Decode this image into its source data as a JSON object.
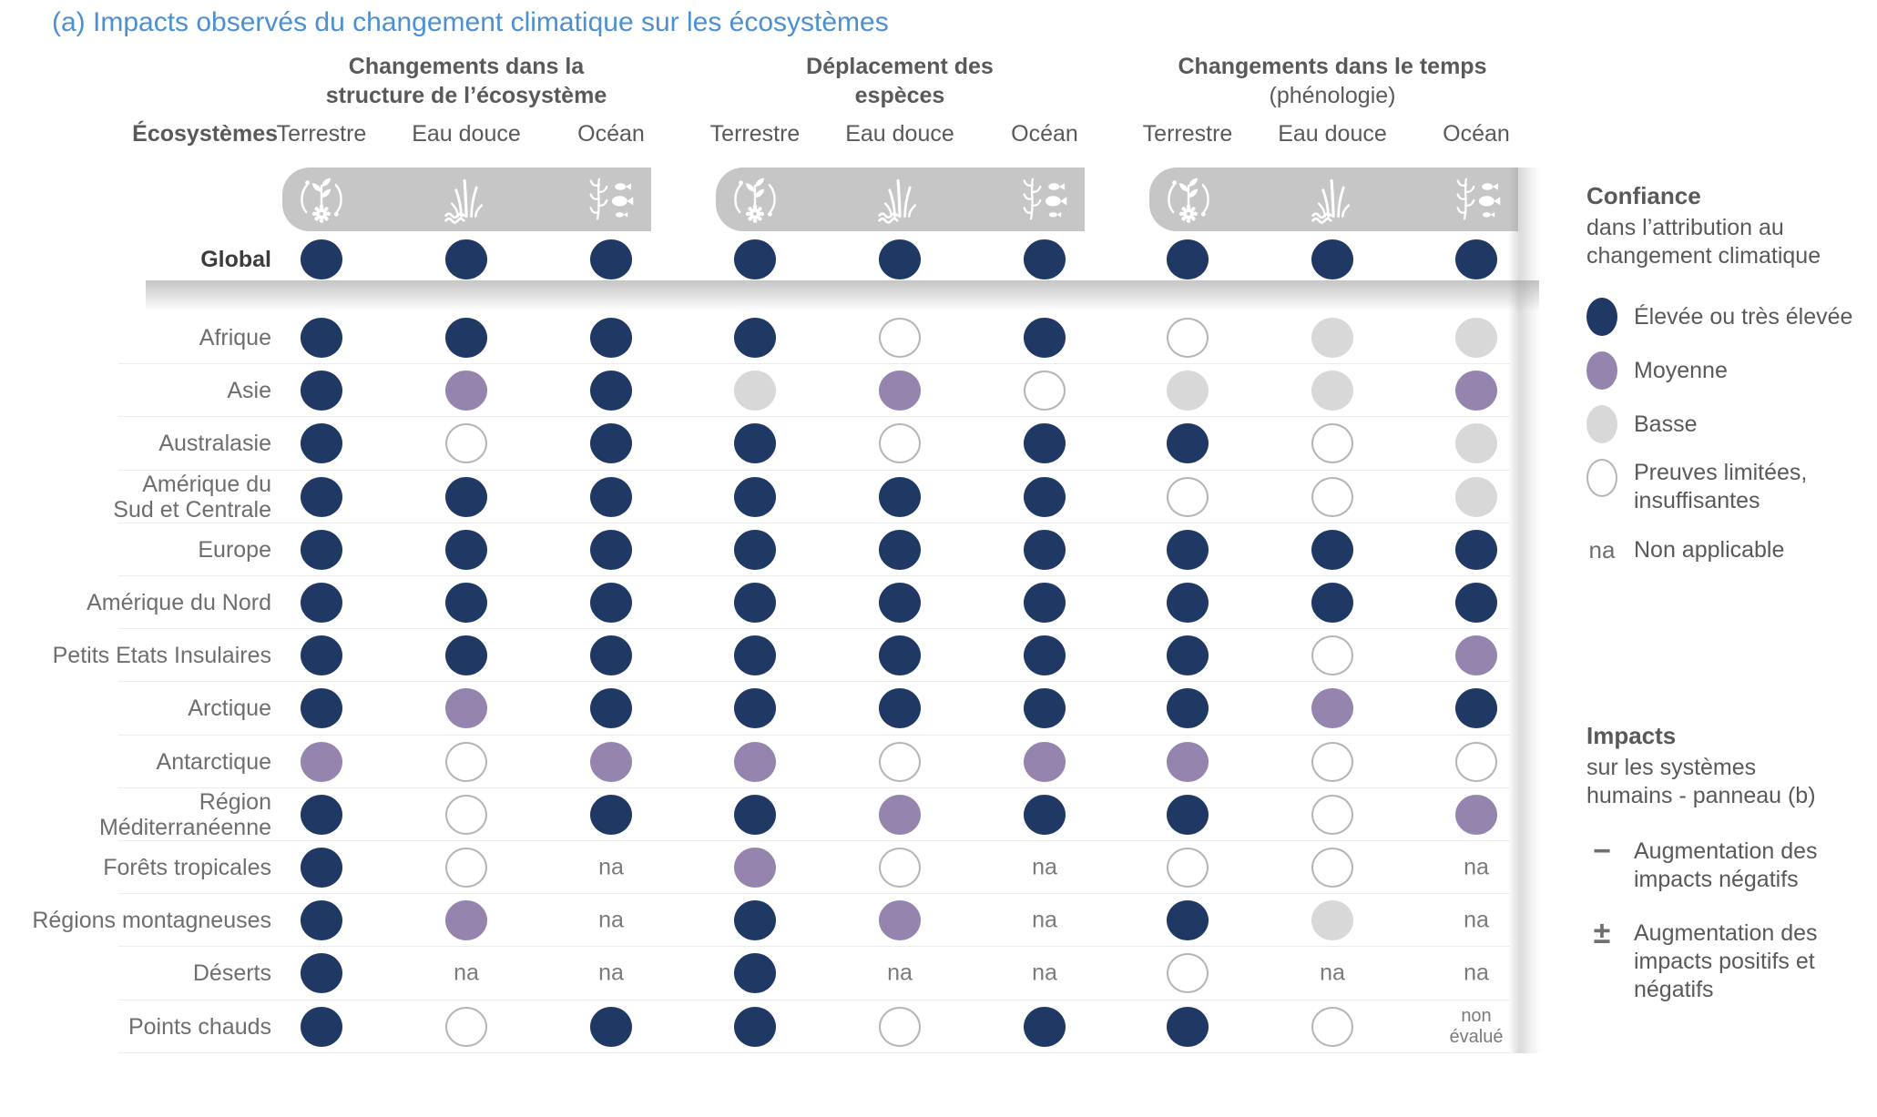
{
  "title": "(a) Impacts observés du changement climatique sur les écosystèmes",
  "colors": {
    "title_blue": "#4a90d2",
    "confidence_high": "#1f3864",
    "confidence_medium": "#9585ae",
    "confidence_low": "#d8d8d8",
    "limited_outline": "#b5b5b5",
    "icon_band_gray": "#c6c6c6",
    "header_gray": "#595959"
  },
  "matrix": {
    "row_header_label": "Écosystèmes",
    "na_label": "na",
    "not_evaluated_label": "non\névalué",
    "groups": [
      {
        "title_lines": [
          "Changements dans la",
          "structure de l’écosystème"
        ],
        "subtitle": "",
        "columns": [
          "Terrestre",
          "Eau douce",
          "Océan"
        ]
      },
      {
        "title_lines": [
          "Déplacement des",
          "espèces"
        ],
        "subtitle": "",
        "columns": [
          "Terrestre",
          "Eau douce",
          "Océan"
        ]
      },
      {
        "title_lines": [
          "Changements dans le temps",
          ""
        ],
        "subtitle": "(phénologie)",
        "columns": [
          "Terrestre",
          "Eau douce",
          "Océan"
        ]
      }
    ],
    "icons": [
      "terrestrial-ecosystem-icon",
      "freshwater-ecosystem-icon",
      "ocean-ecosystem-icon"
    ]
  },
  "chart_data": {
    "type": "heatmap",
    "title": "(a) Impacts observés du changement climatique sur les écosystèmes",
    "column_groups": [
      "Changements dans la structure de l’écosystème",
      "Déplacement des espèces",
      "Changements dans le temps (phénologie)"
    ],
    "columns": [
      "Terrestre",
      "Eau douce",
      "Océan",
      "Terrestre",
      "Eau douce",
      "Océan",
      "Terrestre",
      "Eau douce",
      "Océan"
    ],
    "value_labels": {
      "high": "Élevée ou très élevée",
      "medium": "Moyenne",
      "low": "Basse",
      "limited": "Preuves limitées, insuffisantes",
      "na": "Non applicable",
      "not_evaluated": "non évalué"
    },
    "rows": [
      {
        "label": "Global",
        "values": [
          "high",
          "high",
          "high",
          "high",
          "high",
          "high",
          "high",
          "high",
          "high"
        ]
      },
      {
        "label": "Afrique",
        "values": [
          "high",
          "high",
          "high",
          "high",
          "limited",
          "high",
          "limited",
          "low",
          "low"
        ]
      },
      {
        "label": "Asie",
        "values": [
          "high",
          "medium",
          "high",
          "low",
          "medium",
          "limited",
          "low",
          "low",
          "medium"
        ]
      },
      {
        "label": "Australasie",
        "values": [
          "high",
          "limited",
          "high",
          "high",
          "limited",
          "high",
          "high",
          "limited",
          "low"
        ]
      },
      {
        "label": "Amérique du\nSud et Centrale",
        "values": [
          "high",
          "high",
          "high",
          "high",
          "high",
          "high",
          "limited",
          "limited",
          "low"
        ]
      },
      {
        "label": "Europe",
        "values": [
          "high",
          "high",
          "high",
          "high",
          "high",
          "high",
          "high",
          "high",
          "high"
        ]
      },
      {
        "label": "Amérique du Nord",
        "values": [
          "high",
          "high",
          "high",
          "high",
          "high",
          "high",
          "high",
          "high",
          "high"
        ]
      },
      {
        "label": "Petits Etats Insulaires",
        "values": [
          "high",
          "high",
          "high",
          "high",
          "high",
          "high",
          "high",
          "limited",
          "medium"
        ]
      },
      {
        "label": "Arctique",
        "values": [
          "high",
          "medium",
          "high",
          "high",
          "high",
          "high",
          "high",
          "medium",
          "high"
        ]
      },
      {
        "label": "Antarctique",
        "values": [
          "medium",
          "limited",
          "medium",
          "medium",
          "limited",
          "medium",
          "medium",
          "limited",
          "limited"
        ]
      },
      {
        "label": "Région\nMéditerranéenne",
        "values": [
          "high",
          "limited",
          "high",
          "high",
          "medium",
          "high",
          "high",
          "limited",
          "medium"
        ]
      },
      {
        "label": "Forêts tropicales",
        "values": [
          "high",
          "limited",
          "na",
          "medium",
          "limited",
          "na",
          "limited",
          "limited",
          "na"
        ]
      },
      {
        "label": "Régions montagneuses",
        "values": [
          "high",
          "medium",
          "na",
          "high",
          "medium",
          "na",
          "high",
          "low",
          "na"
        ]
      },
      {
        "label": "Déserts",
        "values": [
          "high",
          "na",
          "na",
          "high",
          "na",
          "na",
          "limited",
          "na",
          "na"
        ]
      },
      {
        "label": "Points chauds",
        "values": [
          "high",
          "limited",
          "high",
          "high",
          "limited",
          "high",
          "high",
          "limited",
          "not_evaluated"
        ]
      }
    ]
  },
  "legend": {
    "confidence": {
      "title": "Confiance",
      "subtitle": "dans l’attribution au\nchangement climatique",
      "items": [
        {
          "key": "high",
          "label": "Élevée ou très élevée"
        },
        {
          "key": "medium",
          "label": "Moyenne"
        },
        {
          "key": "low",
          "label": "Basse"
        },
        {
          "key": "limited",
          "label": "Preuves limitées,\ninsuffisantes"
        },
        {
          "key": "na",
          "symbol": "na",
          "label": "Non applicable"
        }
      ]
    },
    "impacts": {
      "title": "Impacts",
      "subtitle": "sur les systèmes\nhumains - panneau (b)",
      "items": [
        {
          "symbol": "−",
          "label": "Augmentation des\nimpacts négatifs"
        },
        {
          "symbol": "±",
          "label": "Augmentation des\nimpacts positifs et\nnégatifs"
        }
      ]
    }
  }
}
